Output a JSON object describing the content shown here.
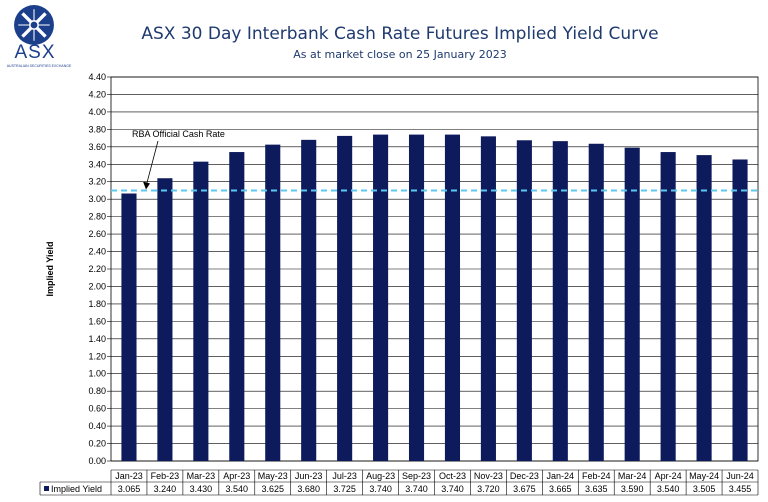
{
  "logo": {
    "name": "ASX",
    "sub": "AUSTRALIAN SECURITIES EXCHANGE"
  },
  "chart_data": {
    "type": "bar",
    "title": "ASX 30 Day Interbank Cash Rate Futures Implied Yield Curve",
    "subtitle": "As at market close on 25 January 2023",
    "ylabel": "Implied Yield",
    "ylim": [
      0,
      4.4
    ],
    "ytick_step": 0.2,
    "grid": true,
    "categories": [
      "Jan-23",
      "Feb-23",
      "Mar-23",
      "Apr-23",
      "May-23",
      "Jun-23",
      "Jul-23",
      "Aug-23",
      "Sep-23",
      "Oct-23",
      "Nov-23",
      "Dec-23",
      "Jan-24",
      "Feb-24",
      "Mar-24",
      "Apr-24",
      "May-24",
      "Jun-24"
    ],
    "series": [
      {
        "name": "Implied Yield",
        "values": [
          3.065,
          3.24,
          3.43,
          3.54,
          3.625,
          3.68,
          3.725,
          3.74,
          3.74,
          3.74,
          3.72,
          3.675,
          3.665,
          3.635,
          3.59,
          3.54,
          3.505,
          3.455
        ],
        "color": "#0d1a5c"
      }
    ],
    "value_labels": [
      "3.065",
      "3.240",
      "3.430",
      "3.540",
      "3.625",
      "3.680",
      "3.725",
      "3.740",
      "3.740",
      "3.740",
      "3.720",
      "3.675",
      "3.665",
      "3.635",
      "3.590",
      "3.540",
      "3.505",
      "3.455"
    ],
    "reference_line": {
      "label": "RBA Official Cash Rate",
      "value": 3.1,
      "color": "#5bc8f0"
    }
  }
}
